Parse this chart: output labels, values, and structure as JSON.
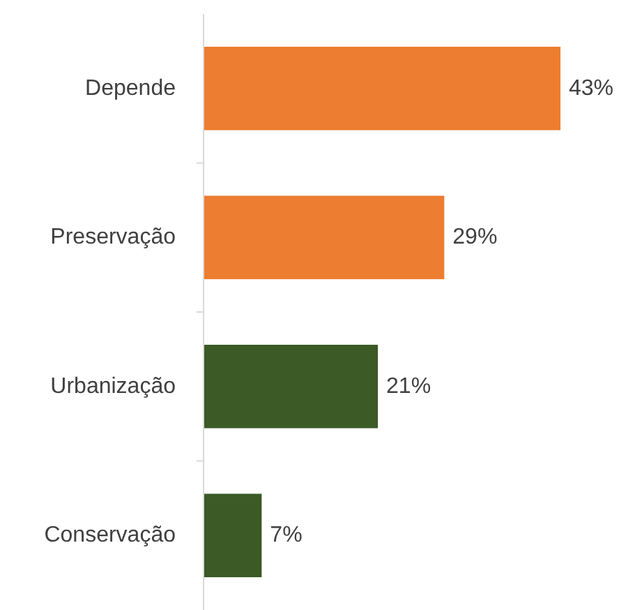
{
  "chart_data": {
    "type": "bar",
    "orientation": "horizontal",
    "categories": [
      "Depende",
      "Preservação",
      "Urbanização",
      "Conservação"
    ],
    "values": [
      43,
      29,
      21,
      7
    ],
    "colors": [
      "#ed7d31",
      "#ed7d31",
      "#3b5a26",
      "#3b5a26"
    ],
    "value_labels": [
      "43%",
      "29%",
      "21%",
      "7%"
    ]
  }
}
